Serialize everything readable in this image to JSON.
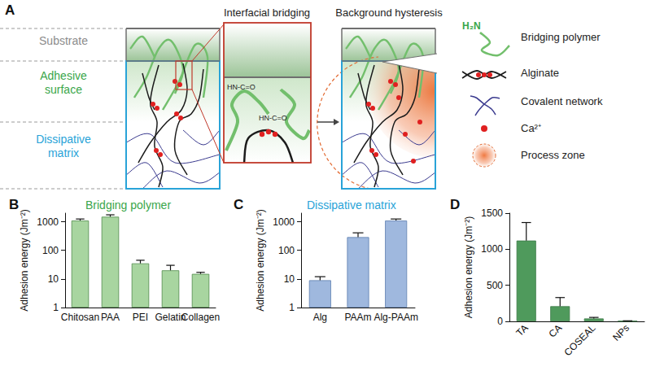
{
  "panel_a": {
    "label": "A",
    "layers": [
      "Substrate",
      "Adhesive surface",
      "Dissipative matrix"
    ],
    "insets": [
      {
        "title": "Interfacial bridging"
      },
      {
        "title": "Background hysteresis"
      }
    ],
    "amide_labels": [
      "HN-C=O",
      "HN-C=O"
    ],
    "legend": [
      {
        "icon": "H₂N",
        "label": "Bridging polymer"
      },
      {
        "label": "Alginate"
      },
      {
        "label": "Covalent network"
      },
      {
        "label": "Ca²⁺"
      },
      {
        "label": "Process zone"
      }
    ]
  },
  "chart_data": [
    {
      "type": "bar",
      "annotations": [
        "B"
      ],
      "title": "Bridging polymer",
      "y_label": "Adhesion energy (Jm⁻²)",
      "categories": [
        "Chitosan",
        "PAA",
        "PEI",
        "Gelatin",
        "Collagen"
      ],
      "values": [
        1100,
        1500,
        35,
        20,
        15
      ],
      "error": [
        150,
        250,
        10,
        10,
        2
      ],
      "color": "#a8d5a0",
      "log": "y",
      "ylim": [
        1,
        2000
      ],
      "yticks": [
        1,
        10,
        100,
        1000
      ]
    },
    {
      "type": "bar",
      "annotations": [
        "C"
      ],
      "title": "Dissipative matrix",
      "y_label": "Adhesion energy (Jm⁻²)",
      "categories": [
        "Alg",
        "PAAm",
        "Alg-PAAm"
      ],
      "values": [
        9,
        290,
        1100
      ],
      "error": [
        3,
        120,
        150
      ],
      "color": "#9fb8de",
      "log": "y",
      "ylim": [
        1,
        2000
      ],
      "yticks": [
        1,
        10,
        100,
        1000
      ]
    },
    {
      "type": "bar",
      "annotations": [
        "D"
      ],
      "y_label": "Adhesion energy (Jm⁻²)",
      "categories": [
        "TA",
        "CA",
        "COSEAL",
        "NPs"
      ],
      "values": [
        1120,
        210,
        40,
        5
      ],
      "error": [
        250,
        120,
        15,
        3
      ],
      "color": "#4f9a5c",
      "ylim": [
        0,
        1500
      ],
      "yticks": [
        0,
        500,
        1000,
        1500
      ]
    }
  ]
}
